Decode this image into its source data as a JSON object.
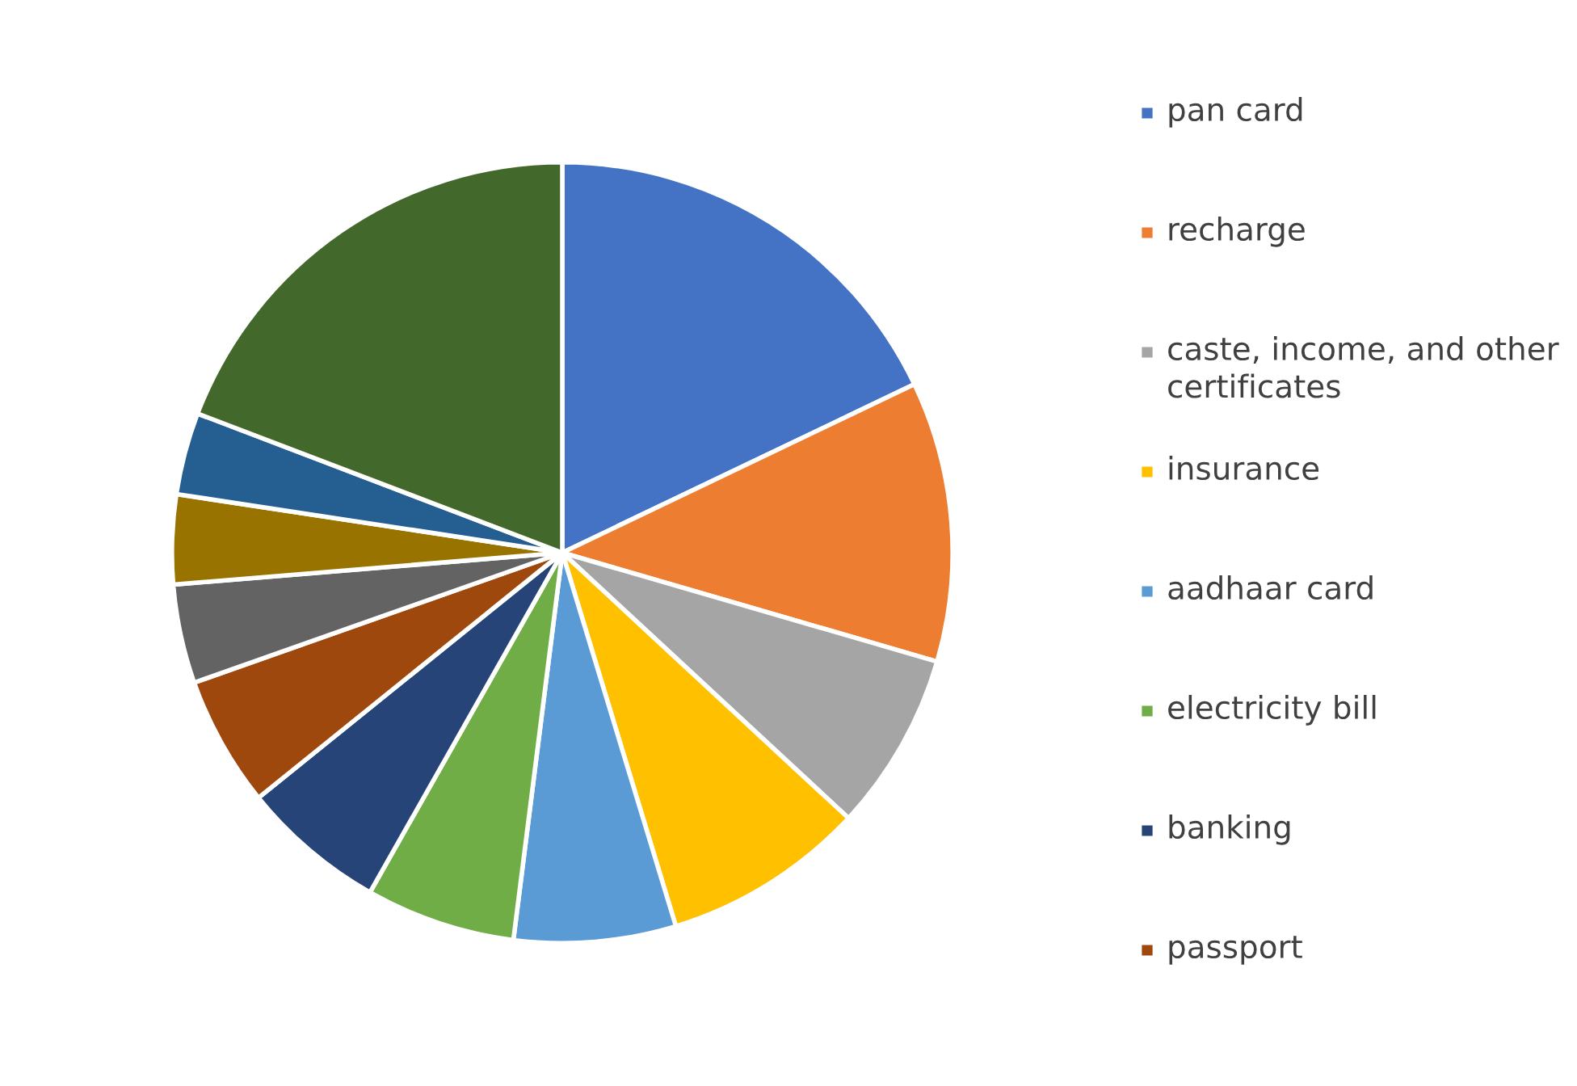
{
  "chart_data": {
    "type": "pie",
    "categories": [
      "pan card",
      "recharge",
      "caste, income, and other certificates",
      "insurance",
      "aadhaar card",
      "electricity bill",
      "banking",
      "passport",
      null,
      null,
      null,
      null
    ],
    "values": [
      17.9,
      11.6,
      7.4,
      8.4,
      6.7,
      6.2,
      6.0,
      5.4,
      4.1,
      3.7,
      3.4,
      19.2
    ],
    "colors": [
      "#4472c4",
      "#ed7d31",
      "#a5a5a5",
      "#ffc000",
      "#5b9bd5",
      "#70ad47",
      "#264478",
      "#9e480e",
      "#636363",
      "#997300",
      "#255e91",
      "#43682b"
    ],
    "legend": "right"
  }
}
